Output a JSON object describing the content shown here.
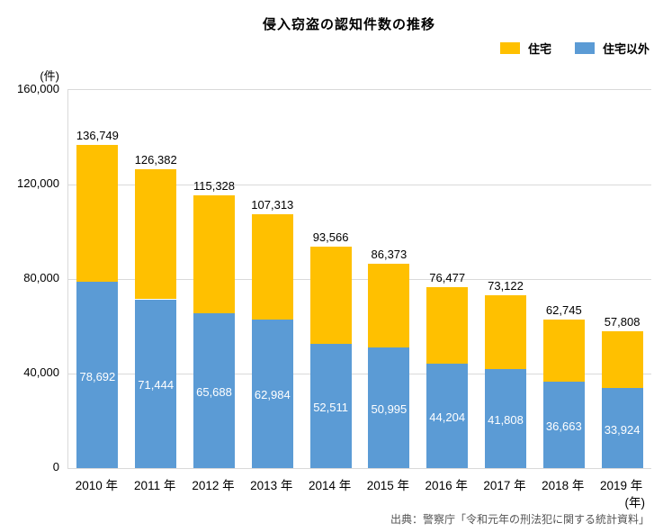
{
  "title": "侵入窃盗の認知件数の推移",
  "y_axis_unit": "(件)",
  "x_axis_unit": "(年)",
  "source": "出典：警察庁「令和元年の刑法犯に関する統計資料」",
  "legend": {
    "items": [
      {
        "label": "住宅",
        "color": "#FFC000"
      },
      {
        "label": "住宅以外",
        "color": "#5B9BD5"
      }
    ]
  },
  "chart_data": {
    "type": "bar",
    "stacked": true,
    "title": "侵入窃盗の認知件数の推移",
    "categories": [
      "2010 年",
      "2011 年",
      "2012 年",
      "2013 年",
      "2014 年",
      "2015 年",
      "2016 年",
      "2017 年",
      "2018 年",
      "2019 年"
    ],
    "series": [
      {
        "name": "住宅以外",
        "color": "#5B9BD5",
        "values": [
          78692,
          71444,
          65688,
          62984,
          52511,
          50995,
          44204,
          41808,
          36663,
          33924
        ],
        "labels_inside_bar": true,
        "label_color": "#FFFFFF"
      },
      {
        "name": "住宅",
        "color": "#FFC000",
        "values": [
          58057,
          54938,
          49640,
          44329,
          41055,
          35378,
          32273,
          31314,
          26082,
          23884
        ]
      }
    ],
    "totals": [
      136749,
      126382,
      115328,
      107313,
      93566,
      86373,
      76477,
      73122,
      62745,
      57808
    ],
    "total_labels_above_bars": true,
    "ylabel": "(件)",
    "xlabel": "(年)",
    "ylim": [
      0,
      160000
    ],
    "yticks": [
      0,
      40000,
      80000,
      120000,
      160000
    ],
    "grid": true,
    "gridline_color": "#D9D9D9",
    "legend_position": "top-right"
  }
}
